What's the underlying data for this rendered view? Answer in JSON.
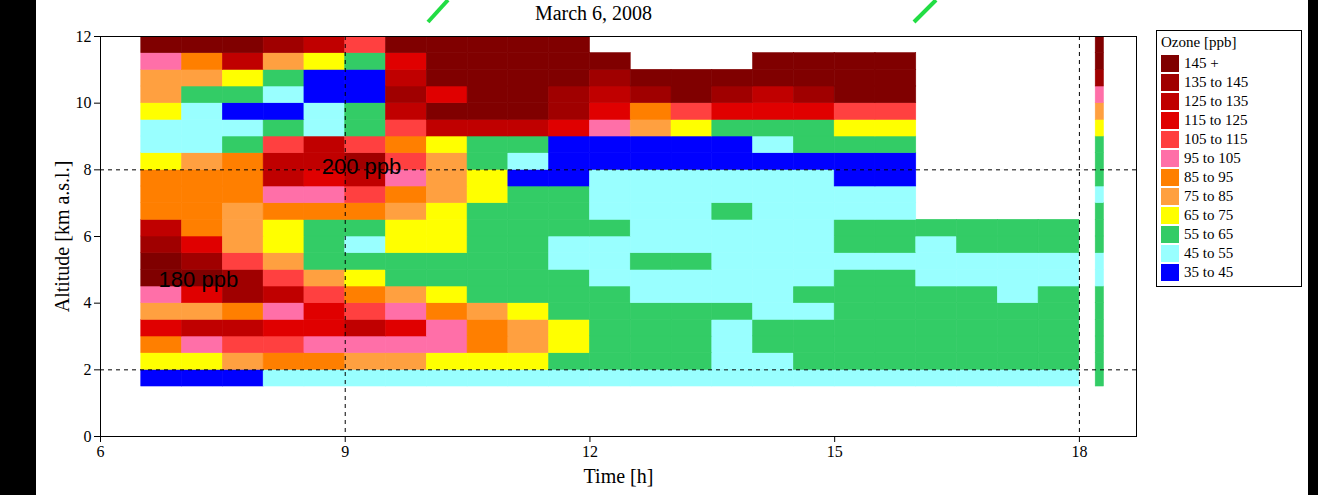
{
  "chart_data": {
    "type": "heatmap",
    "title": "March 6, 2008",
    "x_label": "Time [h]",
    "y_label": "Altitude [km a.s.l.]",
    "xlim": [
      6,
      18.7
    ],
    "xticks": [
      6,
      9,
      12,
      15,
      18
    ],
    "ylim": [
      0,
      12
    ],
    "yticks": [
      0,
      2,
      4,
      6,
      8,
      10,
      12
    ],
    "x_edges": [
      6.5,
      7,
      7.5,
      8,
      8.5,
      9,
      9.5,
      10,
      10.5,
      11,
      11.5,
      12,
      12.5,
      13,
      13.5,
      14,
      14.5,
      15,
      15.5,
      16,
      16.5,
      17,
      17.5,
      18,
      18.2,
      18.3
    ],
    "y_edges": [
      1.5,
      2,
      2.5,
      3,
      3.5,
      4,
      4.5,
      5,
      5.5,
      6,
      6.5,
      7,
      7.5,
      8,
      8.5,
      9,
      9.5,
      10,
      10.5,
      11,
      11.5,
      12
    ],
    "z": [
      [
        40,
        40,
        40,
        50,
        50,
        50,
        50,
        50,
        50,
        50,
        50,
        50,
        50,
        50,
        50,
        50,
        50,
        50,
        50,
        50,
        50,
        50,
        50,
        null,
        60
      ],
      [
        70,
        70,
        80,
        90,
        90,
        80,
        80,
        70,
        70,
        70,
        60,
        60,
        60,
        60,
        50,
        50,
        60,
        60,
        60,
        60,
        60,
        60,
        60,
        null,
        60
      ],
      [
        90,
        100,
        110,
        110,
        100,
        100,
        100,
        100,
        90,
        80,
        70,
        60,
        60,
        60,
        50,
        60,
        60,
        60,
        60,
        60,
        60,
        60,
        60,
        null,
        60
      ],
      [
        120,
        130,
        130,
        120,
        120,
        130,
        120,
        100,
        90,
        80,
        70,
        60,
        60,
        60,
        50,
        60,
        60,
        60,
        60,
        60,
        60,
        60,
        60,
        null,
        60
      ],
      [
        80,
        80,
        90,
        100,
        120,
        110,
        100,
        90,
        80,
        70,
        60,
        60,
        60,
        60,
        60,
        50,
        50,
        60,
        60,
        60,
        60,
        60,
        60,
        null,
        60
      ],
      [
        100,
        120,
        140,
        130,
        110,
        90,
        80,
        70,
        60,
        60,
        60,
        60,
        50,
        50,
        50,
        50,
        60,
        60,
        60,
        60,
        60,
        50,
        60,
        null,
        60
      ],
      [
        150,
        150,
        140,
        110,
        80,
        70,
        60,
        60,
        60,
        60,
        60,
        50,
        50,
        50,
        50,
        50,
        50,
        60,
        60,
        50,
        50,
        50,
        50,
        null,
        50
      ],
      [
        150,
        140,
        110,
        80,
        60,
        60,
        60,
        60,
        60,
        60,
        50,
        50,
        60,
        60,
        50,
        50,
        50,
        50,
        50,
        50,
        50,
        50,
        50,
        null,
        50
      ],
      [
        140,
        120,
        80,
        70,
        60,
        50,
        70,
        70,
        60,
        60,
        50,
        50,
        50,
        50,
        50,
        50,
        50,
        60,
        60,
        50,
        60,
        60,
        60,
        null,
        60
      ],
      [
        130,
        90,
        80,
        70,
        60,
        60,
        70,
        70,
        60,
        60,
        60,
        60,
        50,
        50,
        50,
        50,
        50,
        60,
        60,
        60,
        60,
        60,
        60,
        null,
        60
      ],
      [
        90,
        90,
        80,
        90,
        90,
        90,
        80,
        70,
        60,
        60,
        60,
        50,
        50,
        50,
        60,
        50,
        50,
        50,
        50,
        null,
        null,
        null,
        null,
        null,
        60
      ],
      [
        90,
        90,
        90,
        100,
        100,
        110,
        90,
        80,
        70,
        60,
        60,
        50,
        50,
        50,
        50,
        50,
        50,
        50,
        50,
        null,
        null,
        null,
        null,
        null,
        50
      ],
      [
        90,
        90,
        90,
        130,
        120,
        130,
        100,
        80,
        70,
        40,
        40,
        50,
        50,
        50,
        50,
        50,
        50,
        40,
        40,
        null,
        null,
        null,
        null,
        null,
        60
      ],
      [
        70,
        80,
        90,
        130,
        130,
        140,
        110,
        80,
        60,
        50,
        40,
        40,
        40,
        40,
        40,
        40,
        40,
        40,
        40,
        null,
        null,
        null,
        null,
        null,
        60
      ],
      [
        50,
        50,
        60,
        110,
        130,
        110,
        90,
        70,
        60,
        60,
        40,
        40,
        40,
        40,
        40,
        50,
        60,
        60,
        60,
        null,
        null,
        null,
        null,
        null,
        60
      ],
      [
        50,
        50,
        50,
        60,
        50,
        60,
        110,
        130,
        130,
        130,
        120,
        100,
        80,
        70,
        60,
        60,
        60,
        70,
        70,
        null,
        null,
        null,
        null,
        null,
        70
      ],
      [
        70,
        50,
        40,
        40,
        50,
        60,
        130,
        150,
        150,
        150,
        140,
        120,
        90,
        110,
        120,
        120,
        120,
        110,
        110,
        null,
        null,
        null,
        null,
        null,
        80
      ],
      [
        80,
        60,
        60,
        50,
        40,
        40,
        140,
        120,
        150,
        150,
        140,
        130,
        140,
        150,
        140,
        130,
        140,
        150,
        150,
        null,
        null,
        null,
        null,
        null,
        100
      ],
      [
        80,
        80,
        70,
        60,
        40,
        40,
        130,
        150,
        150,
        150,
        150,
        140,
        150,
        150,
        150,
        150,
        150,
        150,
        150,
        null,
        null,
        null,
        null,
        null,
        140
      ],
      [
        100,
        90,
        130,
        80,
        70,
        60,
        120,
        150,
        150,
        150,
        150,
        150,
        null,
        null,
        null,
        150,
        150,
        150,
        150,
        null,
        null,
        null,
        null,
        null,
        150
      ],
      [
        150,
        150,
        150,
        140,
        130,
        110,
        150,
        150,
        150,
        150,
        150,
        null,
        null,
        null,
        null,
        null,
        null,
        null,
        null,
        null,
        null,
        null,
        null,
        null,
        150
      ]
    ],
    "colorbar": {
      "title": "Ozone [ppb]",
      "thresholds": [
        45,
        55,
        65,
        75,
        85,
        95,
        105,
        115,
        125,
        135,
        145
      ],
      "colors": [
        "#0000ff",
        "#99ffff",
        "#33cc66",
        "#ffff00",
        "#ffa040",
        "#ff7f00",
        "#ff6fa8",
        "#ff4040",
        "#e00000",
        "#c00000",
        "#a00000",
        "#800000"
      ],
      "labels": [
        "35 to 45",
        "45 to 55",
        "55 to 65",
        "65 to 75",
        "75 to 85",
        "85 to 95",
        "95 to 105",
        "105 to 115",
        "115 to 125",
        "125 to 135",
        "135 to 145",
        "145 +"
      ]
    },
    "reference_lines": {
      "x": [
        9,
        18
      ],
      "y": [
        2,
        8
      ]
    },
    "annotations": [
      {
        "text": "200 ppb",
        "x": 9.2,
        "y": 8.1
      },
      {
        "text": "180 ppb",
        "x": 7.2,
        "y": 4.7
      }
    ]
  }
}
